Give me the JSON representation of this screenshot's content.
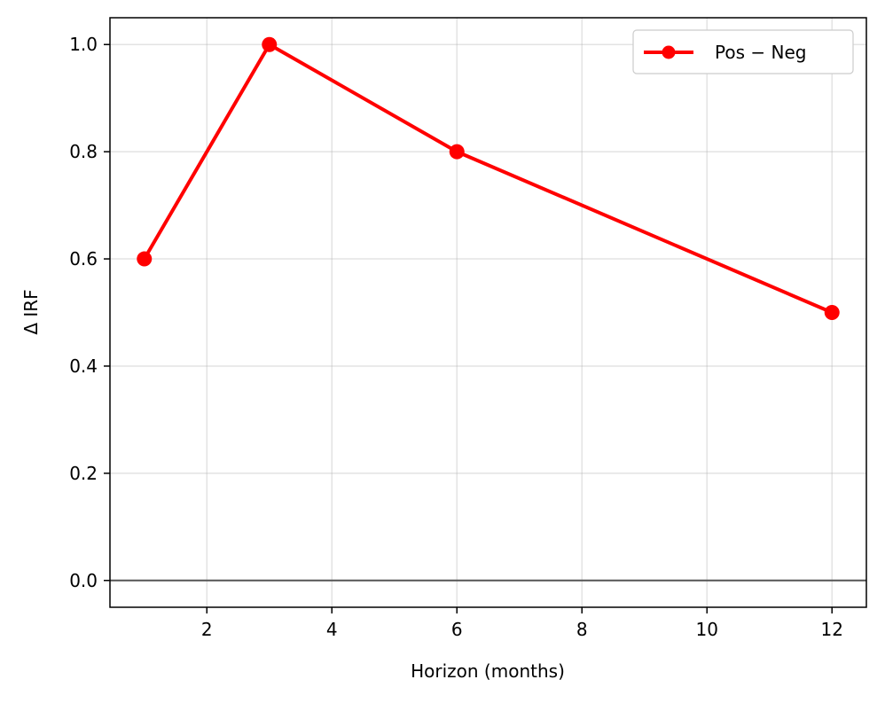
{
  "chart_data": {
    "type": "line",
    "xlabel": "Horizon (months)",
    "ylabel": "Δ IRF",
    "x": [
      1,
      3,
      6,
      12
    ],
    "series": [
      {
        "name": "Pos − Neg",
        "values": [
          0.6,
          1.0,
          0.8,
          0.5
        ],
        "color": "#ff0000",
        "marker": "circle"
      }
    ],
    "xlim": [
      0.45,
      12.55
    ],
    "ylim": [
      -0.05,
      1.05
    ],
    "xticks": [
      2,
      4,
      6,
      8,
      10,
      12
    ],
    "xtick_labels": [
      "2",
      "4",
      "6",
      "8",
      "10",
      "12"
    ],
    "yticks": [
      0.0,
      0.2,
      0.4,
      0.6,
      0.8,
      1.0
    ],
    "ytick_labels": [
      "0.0",
      "0.2",
      "0.4",
      "0.6",
      "0.8",
      "1.0"
    ],
    "reference_line": {
      "y": 0,
      "color": "#555555"
    },
    "grid": true,
    "legend": {
      "placement": "top-right"
    }
  }
}
